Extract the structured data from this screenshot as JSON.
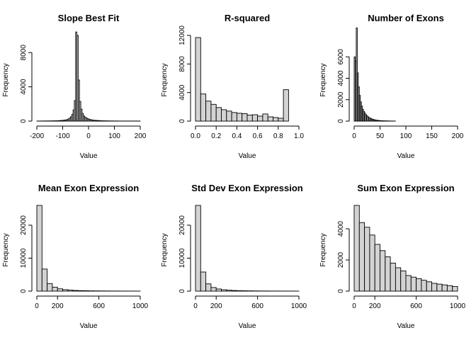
{
  "chart_data": [
    {
      "type": "bar",
      "title": "Slope Best Fit",
      "xlabel": "Value",
      "ylabel": "Frequency",
      "xlim": [
        -200,
        200
      ],
      "ylim": [
        0,
        10000
      ],
      "xticks": [
        -200,
        -100,
        0,
        100,
        200
      ],
      "xtick_labels": [
        "-200",
        "-100",
        "0",
        "100",
        "200"
      ],
      "yticks": [
        0,
        4000,
        8000
      ],
      "ytick_labels": [
        "0",
        "4000",
        "8000"
      ],
      "bin_width": 5,
      "bins_start": -200,
      "values": [
        10,
        10,
        10,
        15,
        15,
        15,
        20,
        20,
        20,
        20,
        25,
        30,
        30,
        35,
        40,
        45,
        50,
        60,
        70,
        80,
        100,
        120,
        140,
        180,
        250,
        350,
        500,
        800,
        1300,
        2400,
        10400,
        10000,
        4800,
        2300,
        1400,
        900,
        600,
        450,
        350,
        280,
        220,
        180,
        150,
        120,
        100,
        90,
        80,
        70,
        60,
        50,
        45,
        40,
        35,
        30,
        30,
        25,
        20,
        20,
        20,
        15,
        15,
        15,
        15,
        10,
        10,
        10,
        10,
        10,
        10,
        10,
        10,
        10,
        10,
        10,
        10,
        10,
        10,
        10,
        10,
        10
      ]
    },
    {
      "type": "bar",
      "title": "R-squared",
      "xlabel": "Value",
      "ylabel": "Frequency",
      "xlim": [
        0,
        1
      ],
      "ylim": [
        0,
        12000
      ],
      "xticks": [
        0,
        0.2,
        0.4,
        0.6,
        0.8,
        1.0
      ],
      "xtick_labels": [
        "0.0",
        "0.2",
        "0.4",
        "0.6",
        "0.8",
        "1.0"
      ],
      "yticks": [
        0,
        4000,
        8000,
        12000
      ],
      "ytick_labels": [
        "0",
        "4000",
        "8000",
        "12000"
      ],
      "bin_width": 0.05,
      "bins_start": 0,
      "values": [
        11700,
        3800,
        2800,
        2350,
        1900,
        1600,
        1400,
        1200,
        1100,
        1050,
        850,
        900,
        700,
        1000,
        600,
        500,
        400,
        4400
      ]
    },
    {
      "type": "bar",
      "title": "Number of Exons",
      "xlabel": "Value",
      "ylabel": "Frequency",
      "xlim": [
        0,
        200
      ],
      "ylim": [
        0,
        8000
      ],
      "xticks": [
        0,
        50,
        100,
        150,
        200
      ],
      "xtick_labels": [
        "0",
        "50",
        "100",
        "150",
        "200"
      ],
      "yticks": [
        0,
        2000,
        4000,
        6000
      ],
      "ytick_labels": [
        "0",
        "2000",
        "4000",
        "6000"
      ],
      "bin_width": 2,
      "bins_start": 0,
      "values": [
        6000,
        5600,
        8700,
        4500,
        3200,
        2400,
        1800,
        1400,
        1100,
        900,
        750,
        600,
        500,
        400,
        330,
        280,
        230,
        190,
        160,
        130,
        110,
        90,
        75,
        60,
        50,
        45,
        40,
        35,
        30,
        25,
        20,
        18,
        16,
        14,
        12,
        10,
        9,
        8,
        7,
        6
      ]
    },
    {
      "type": "bar",
      "title": "Mean Exon Expression",
      "xlabel": "Value",
      "ylabel": "Frequency",
      "xlim": [
        0,
        1000
      ],
      "ylim": [
        0,
        26000
      ],
      "xticks": [
        0,
        200,
        600,
        1000
      ],
      "xtick_labels": [
        "0",
        "200",
        "600",
        "1000"
      ],
      "yticks": [
        0,
        10000,
        20000
      ],
      "ytick_labels": [
        "0",
        "10000",
        "20000"
      ],
      "bin_width": 50,
      "bins_start": 0,
      "values": [
        26000,
        6700,
        2300,
        1200,
        700,
        450,
        300,
        200,
        150,
        120,
        90,
        70,
        55,
        45,
        35,
        30,
        25,
        20,
        15,
        12
      ]
    },
    {
      "type": "bar",
      "title": "Std Dev Exon Expression",
      "xlabel": "Value",
      "ylabel": "Frequency",
      "xlim": [
        0,
        1000
      ],
      "ylim": [
        0,
        26000
      ],
      "xticks": [
        0,
        200,
        600,
        1000
      ],
      "xtick_labels": [
        "0",
        "200",
        "600",
        "1000"
      ],
      "yticks": [
        0,
        10000,
        20000
      ],
      "ytick_labels": [
        "0",
        "10000",
        "20000"
      ],
      "bin_width": 50,
      "bins_start": 0,
      "values": [
        26000,
        5800,
        2200,
        1100,
        650,
        420,
        280,
        190,
        140,
        110,
        85,
        65,
        50,
        40,
        32,
        26,
        21,
        17,
        14,
        11
      ]
    },
    {
      "type": "bar",
      "title": "Sum Exon Expression",
      "xlabel": "Value",
      "ylabel": "Frequency",
      "xlim": [
        0,
        1000
      ],
      "ylim": [
        0,
        5500
      ],
      "xticks": [
        0,
        200,
        600,
        1000
      ],
      "xtick_labels": [
        "0",
        "200",
        "600",
        "1000"
      ],
      "yticks": [
        0,
        2000,
        4000
      ],
      "ytick_labels": [
        "0",
        "2000",
        "4000"
      ],
      "bin_width": 50,
      "bins_start": 0,
      "values": [
        5500,
        4400,
        4100,
        3600,
        3000,
        2600,
        2200,
        1800,
        1500,
        1300,
        1000,
        900,
        800,
        700,
        600,
        500,
        450,
        400,
        350,
        300
      ]
    }
  ]
}
